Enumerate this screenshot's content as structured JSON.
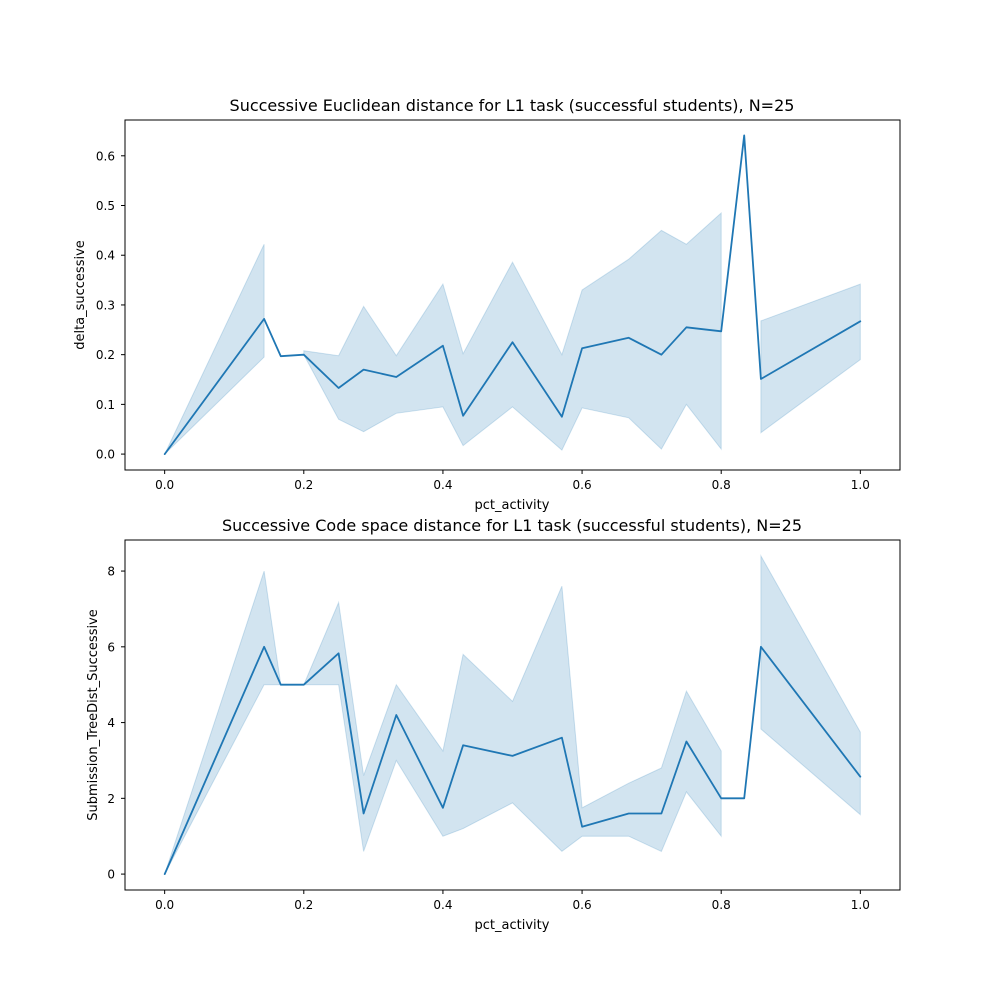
{
  "chart_data": [
    {
      "type": "line",
      "title": "Successive Euclidean distance for L1 task (successful students), N=25",
      "xlabel": "pct_activity",
      "ylabel": "delta_successive",
      "xlim": [
        -0.057,
        1.057
      ],
      "ylim": [
        -0.032,
        0.672
      ],
      "x_ticks": [
        0.0,
        0.2,
        0.4,
        0.6,
        0.8,
        1.0
      ],
      "x_tick_labels": [
        "0.0",
        "0.2",
        "0.4",
        "0.6",
        "0.8",
        "1.0"
      ],
      "y_ticks": [
        0.0,
        0.1,
        0.2,
        0.3,
        0.4,
        0.5,
        0.6
      ],
      "y_tick_labels": [
        "0.0",
        "0.1",
        "0.2",
        "0.3",
        "0.4",
        "0.5",
        "0.6"
      ],
      "grid": false,
      "line_color": "#1f77b4",
      "band_color": "#1f77b4",
      "series": [
        {
          "segments": [
            {
              "x": [
                0.0,
                0.143,
                0.167,
                0.2,
                0.25,
                0.286,
                0.333,
                0.4,
                0.429,
                0.5,
                0.571,
                0.6,
                0.667,
                0.714,
                0.75,
                0.8,
                0.833,
                0.857,
                1.0
              ],
              "y": [
                0.0,
                0.272,
                0.197,
                0.2,
                0.133,
                0.17,
                0.155,
                0.218,
                0.077,
                0.225,
                0.075,
                0.213,
                0.234,
                0.2,
                0.255,
                0.247,
                0.641,
                0.151,
                0.267
              ]
            }
          ],
          "ci_segments": [
            {
              "x": [
                0.0,
                0.143
              ],
              "lower": [
                0.0,
                0.195
              ],
              "upper": [
                0.0,
                0.422
              ]
            },
            {
              "x": [
                0.2,
                0.25,
                0.286,
                0.333,
                0.4,
                0.429,
                0.5,
                0.571,
                0.6,
                0.667,
                0.714,
                0.75,
                0.8
              ],
              "lower": [
                0.2,
                0.07,
                0.045,
                0.082,
                0.095,
                0.017,
                0.095,
                0.008,
                0.093,
                0.073,
                0.01,
                0.1,
                0.01
              ],
              "upper": [
                0.208,
                0.198,
                0.297,
                0.198,
                0.342,
                0.202,
                0.386,
                0.2,
                0.33,
                0.392,
                0.45,
                0.422,
                0.485
              ]
            },
            {
              "x": [
                0.857,
                1.0
              ],
              "lower": [
                0.043,
                0.19
              ],
              "upper": [
                0.268,
                0.342
              ]
            }
          ]
        }
      ]
    },
    {
      "type": "line",
      "title": "Successive Code space distance for L1 task (successful students), N=25",
      "xlabel": "pct_activity",
      "ylabel": "Submission_TreeDist_Successive",
      "xlim": [
        -0.057,
        1.057
      ],
      "ylim": [
        -0.42,
        8.82
      ],
      "x_ticks": [
        0.0,
        0.2,
        0.4,
        0.6,
        0.8,
        1.0
      ],
      "x_tick_labels": [
        "0.0",
        "0.2",
        "0.4",
        "0.6",
        "0.8",
        "1.0"
      ],
      "y_ticks": [
        0,
        2,
        4,
        6,
        8
      ],
      "y_tick_labels": [
        "0",
        "2",
        "4",
        "6",
        "8"
      ],
      "grid": false,
      "line_color": "#1f77b4",
      "band_color": "#1f77b4",
      "series": [
        {
          "segments": [
            {
              "x": [
                0.0,
                0.143,
                0.167,
                0.2,
                0.25,
                0.286,
                0.333,
                0.4,
                0.429,
                0.5,
                0.571,
                0.6,
                0.667,
                0.714,
                0.75,
                0.8,
                0.833,
                0.857,
                1.0
              ],
              "y": [
                0.0,
                6.0,
                5.0,
                5.0,
                5.83,
                1.6,
                4.2,
                1.75,
                3.4,
                3.12,
                3.6,
                1.25,
                1.6,
                1.6,
                3.5,
                2.0,
                2.0,
                6.0,
                2.57
              ]
            }
          ],
          "ci_segments": [
            {
              "x": [
                0.0,
                0.143,
                0.167,
                0.2,
                0.25,
                0.286,
                0.333,
                0.4,
                0.429,
                0.5,
                0.571,
                0.6,
                0.667,
                0.714,
                0.75,
                0.8
              ],
              "lower": [
                0.0,
                5.0,
                5.0,
                5.0,
                5.0,
                0.6,
                3.0,
                1.0,
                1.2,
                1.88,
                0.6,
                1.0,
                1.0,
                0.6,
                2.17,
                1.0
              ],
              "upper": [
                0.0,
                8.0,
                5.0,
                5.0,
                7.17,
                2.6,
                5.0,
                3.25,
                5.8,
                4.56,
                7.6,
                1.75,
                2.4,
                2.8,
                4.83,
                3.25
              ]
            },
            {
              "x": [
                0.857,
                1.0
              ],
              "lower": [
                3.83,
                1.57
              ],
              "upper": [
                8.4,
                3.75
              ]
            }
          ]
        }
      ]
    }
  ]
}
